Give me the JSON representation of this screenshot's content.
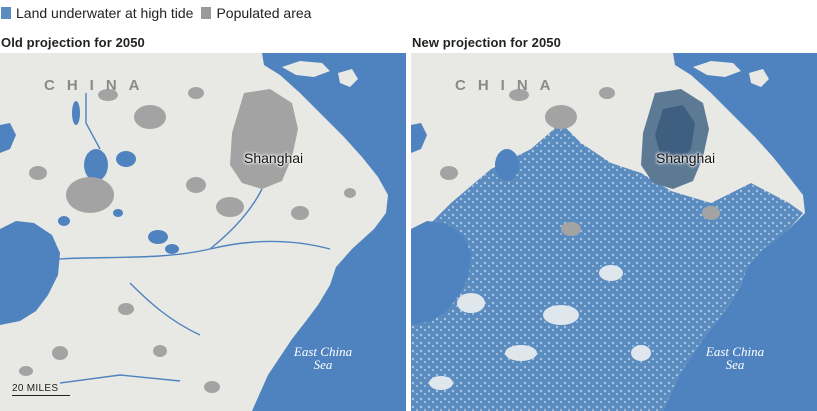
{
  "legend": {
    "items": [
      {
        "label": "Land underwater at high tide",
        "color": "#5b8cc0"
      },
      {
        "label": "Populated area",
        "color": "#9a9a9a"
      }
    ]
  },
  "panels": [
    {
      "title": "Old projection for 2050"
    },
    {
      "title": "New projection for 2050"
    }
  ],
  "labels": {
    "country": "CHINA",
    "city": "Shanghai",
    "sea_line1": "East China",
    "sea_line2": "Sea",
    "scale": "20 MILES"
  },
  "colors": {
    "water": "#4f83bf",
    "land": "#e8e8e4",
    "populated": "#9a9a9a",
    "flooded": "#5b8cc0"
  }
}
